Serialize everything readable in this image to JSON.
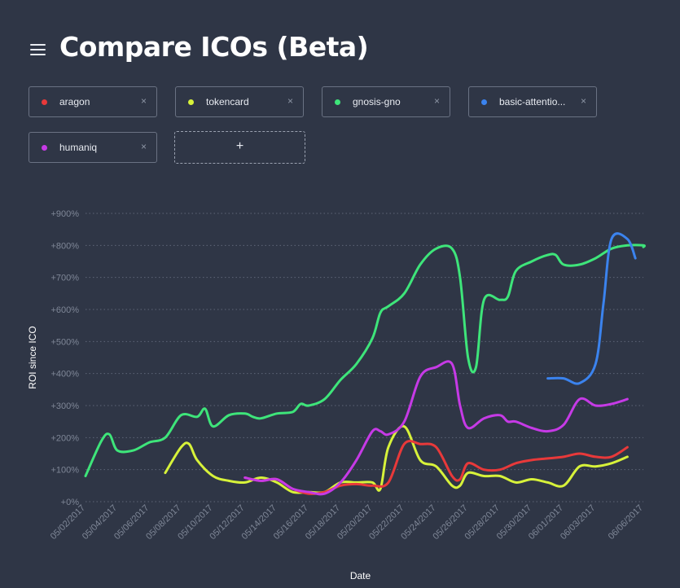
{
  "header": {
    "title": "Compare ICOs (Beta)",
    "menu_icon": "hamburger-menu-icon"
  },
  "chips": [
    {
      "label": "aragon",
      "color": "#e8393a",
      "remove": "×"
    },
    {
      "label": "tokencard",
      "color": "#d7f23a",
      "remove": "×"
    },
    {
      "label": "gnosis-gno",
      "color": "#3ee57a",
      "remove": "×"
    },
    {
      "label": "basic-attentio...",
      "color": "#3b83ee",
      "remove": "×"
    },
    {
      "label": "humaniq",
      "color": "#c63ae6",
      "remove": "×"
    }
  ],
  "add_button": {
    "label": "+"
  },
  "chart_data": {
    "type": "line",
    "xlabel": "Date",
    "ylabel": "ROI since ICO",
    "ylim": [
      0,
      900
    ],
    "x_start": "05/02/2017",
    "x_end": "06/06/2017",
    "x_ticks": [
      "05/02/2017",
      "05/04/2017",
      "05/06/2017",
      "05/08/2017",
      "05/10/2017",
      "05/12/2017",
      "05/14/2017",
      "05/16/2017",
      "05/18/2017",
      "05/20/2017",
      "05/22/2017",
      "05/24/2017",
      "05/26/2017",
      "05/28/2017",
      "05/30/2017",
      "06/01/2017",
      "06/03/2017",
      "06/06/2017"
    ],
    "y_ticks": [
      0,
      100,
      200,
      300,
      400,
      500,
      600,
      700,
      800,
      900
    ],
    "y_tick_labels": [
      "+0%",
      "+100%",
      "+200%",
      "+300%",
      "+400%",
      "+500%",
      "+600%",
      "+700%",
      "+800%",
      "+900%"
    ],
    "grid": true,
    "series": [
      {
        "name": "gnosis-gno",
        "color": "#3ee57a",
        "points": [
          [
            "05/02/2017",
            80
          ],
          [
            "05/03/2017",
            190
          ],
          [
            "05/03/2017",
            210
          ],
          [
            "05/04/2017",
            160
          ],
          [
            "05/05/2017",
            160
          ],
          [
            "05/06/2017",
            185
          ],
          [
            "05/07/2017",
            200
          ],
          [
            "05/08/2017",
            270
          ],
          [
            "05/09/2017",
            265
          ],
          [
            "05/09/2017",
            290
          ],
          [
            "05/10/2017",
            235
          ],
          [
            "05/11/2017",
            270
          ],
          [
            "05/12/2017",
            275
          ],
          [
            "05/12/2017",
            265
          ],
          [
            "05/13/2017",
            260
          ],
          [
            "05/14/2017",
            275
          ],
          [
            "05/15/2017",
            280
          ],
          [
            "05/15/2017",
            305
          ],
          [
            "05/16/2017",
            300
          ],
          [
            "05/17/2017",
            320
          ],
          [
            "05/18/2017",
            380
          ],
          [
            "05/19/2017",
            430
          ],
          [
            "05/20/2017",
            510
          ],
          [
            "05/20/2017",
            590
          ],
          [
            "05/21/2017",
            610
          ],
          [
            "05/22/2017",
            650
          ],
          [
            "05/23/2017",
            740
          ],
          [
            "05/24/2017",
            790
          ],
          [
            "05/25/2017",
            790
          ],
          [
            "05/25/2017",
            700
          ],
          [
            "05/26/2017",
            450
          ],
          [
            "05/26/2017",
            420
          ],
          [
            "05/27/2017",
            630
          ],
          [
            "05/28/2017",
            630
          ],
          [
            "05/28/2017",
            640
          ],
          [
            "05/29/2017",
            720
          ],
          [
            "05/30/2017",
            750
          ],
          [
            "05/31/2017",
            770
          ],
          [
            "05/31/2017",
            770
          ],
          [
            "06/01/2017",
            740
          ],
          [
            "06/02/2017",
            740
          ],
          [
            "06/03/2017",
            760
          ],
          [
            "06/04/2017",
            790
          ],
          [
            "06/05/2017",
            800
          ],
          [
            "06/06/2017",
            800
          ],
          [
            "06/06/2017",
            795
          ]
        ]
      },
      {
        "name": "tokencard",
        "color": "#d7f23a",
        "points": [
          [
            "05/07/2017",
            90
          ],
          [
            "05/08/2017",
            170
          ],
          [
            "05/08/2017",
            180
          ],
          [
            "05/09/2017",
            130
          ],
          [
            "05/10/2017",
            80
          ],
          [
            "05/11/2017",
            65
          ],
          [
            "05/12/2017",
            60
          ],
          [
            "05/13/2017",
            75
          ],
          [
            "05/14/2017",
            60
          ],
          [
            "05/15/2017",
            30
          ],
          [
            "05/16/2017",
            30
          ],
          [
            "05/17/2017",
            30
          ],
          [
            "05/18/2017",
            60
          ],
          [
            "05/19/2017",
            60
          ],
          [
            "05/20/2017",
            60
          ],
          [
            "05/20/2017",
            40
          ],
          [
            "05/21/2017",
            170
          ],
          [
            "05/22/2017",
            235
          ],
          [
            "05/23/2017",
            130
          ],
          [
            "05/24/2017",
            110
          ],
          [
            "05/25/2017",
            50
          ],
          [
            "05/25/2017",
            50
          ],
          [
            "05/26/2017",
            90
          ],
          [
            "05/27/2017",
            80
          ],
          [
            "05/28/2017",
            80
          ],
          [
            "05/29/2017",
            60
          ],
          [
            "05/30/2017",
            70
          ],
          [
            "05/31/2017",
            60
          ],
          [
            "06/01/2017",
            50
          ],
          [
            "06/02/2017",
            110
          ],
          [
            "06/03/2017",
            110
          ],
          [
            "06/04/2017",
            120
          ],
          [
            "06/05/2017",
            140
          ]
        ]
      },
      {
        "name": "aragon",
        "color": "#e8393a",
        "points": [
          [
            "05/12/2017",
            75
          ],
          [
            "05/13/2017",
            65
          ],
          [
            "05/14/2017",
            70
          ],
          [
            "05/15/2017",
            40
          ],
          [
            "05/16/2017",
            25
          ],
          [
            "05/17/2017",
            30
          ],
          [
            "05/18/2017",
            50
          ],
          [
            "05/19/2017",
            55
          ],
          [
            "05/20/2017",
            50
          ],
          [
            "05/21/2017",
            60
          ],
          [
            "05/22/2017",
            180
          ],
          [
            "05/23/2017",
            180
          ],
          [
            "05/24/2017",
            170
          ],
          [
            "05/25/2017",
            80
          ],
          [
            "05/25/2017",
            70
          ],
          [
            "05/26/2017",
            120
          ],
          [
            "05/27/2017",
            100
          ],
          [
            "05/28/2017",
            100
          ],
          [
            "05/29/2017",
            120
          ],
          [
            "05/30/2017",
            130
          ],
          [
            "05/31/2017",
            135
          ],
          [
            "06/01/2017",
            140
          ],
          [
            "06/02/2017",
            150
          ],
          [
            "06/03/2017",
            140
          ],
          [
            "06/04/2017",
            140
          ],
          [
            "06/05/2017",
            170
          ]
        ]
      },
      {
        "name": "humaniq",
        "color": "#c63ae6",
        "points": [
          [
            "05/12/2017",
            75
          ],
          [
            "05/13/2017",
            65
          ],
          [
            "05/14/2017",
            70
          ],
          [
            "05/15/2017",
            40
          ],
          [
            "05/16/2017",
            30
          ],
          [
            "05/17/2017",
            25
          ],
          [
            "05/18/2017",
            60
          ],
          [
            "05/19/2017",
            130
          ],
          [
            "05/20/2017",
            220
          ],
          [
            "05/20/2017",
            220
          ],
          [
            "05/21/2017",
            210
          ],
          [
            "05/22/2017",
            250
          ],
          [
            "05/23/2017",
            390
          ],
          [
            "05/24/2017",
            420
          ],
          [
            "05/25/2017",
            430
          ],
          [
            "05/25/2017",
            300
          ],
          [
            "05/26/2017",
            230
          ],
          [
            "05/27/2017",
            260
          ],
          [
            "05/28/2017",
            270
          ],
          [
            "05/28/2017",
            250
          ],
          [
            "05/29/2017",
            250
          ],
          [
            "05/30/2017",
            230
          ],
          [
            "05/31/2017",
            220
          ],
          [
            "06/01/2017",
            240
          ],
          [
            "06/02/2017",
            320
          ],
          [
            "06/03/2017",
            300
          ],
          [
            "06/04/2017",
            305
          ],
          [
            "06/05/2017",
            320
          ]
        ]
      },
      {
        "name": "basic-attentio...",
        "color": "#3b83ee",
        "points": [
          [
            "05/31/2017",
            385
          ],
          [
            "06/01/2017",
            385
          ],
          [
            "06/02/2017",
            370
          ],
          [
            "06/03/2017",
            430
          ],
          [
            "06/03/2017",
            620
          ],
          [
            "06/04/2017",
            820
          ],
          [
            "06/05/2017",
            820
          ],
          [
            "06/05/2017",
            760
          ]
        ]
      }
    ]
  }
}
